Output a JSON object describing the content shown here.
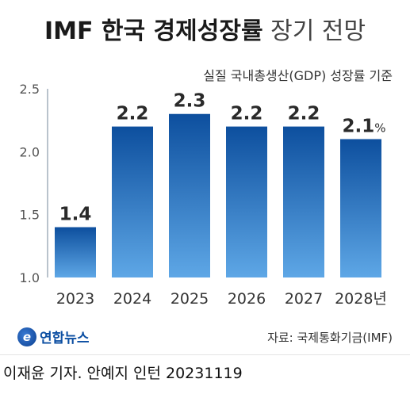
{
  "header": {
    "title_bold": "IMF 한국 경제성장률",
    "title_light": "장기 전망",
    "subtitle": "실질 국내총생산(GDP) 성장률 기준"
  },
  "chart_data": {
    "type": "bar",
    "categories": [
      "2023",
      "2024",
      "2025",
      "2026",
      "2027",
      "2028년"
    ],
    "values": [
      1.4,
      2.2,
      2.3,
      2.2,
      2.2,
      2.1
    ],
    "value_labels": [
      "1.4",
      "2.2",
      "2.3",
      "2.2",
      "2.2",
      "2.1"
    ],
    "last_value_unit": "%",
    "yticks": [
      "2.5",
      "2.0",
      "1.5",
      "1.0"
    ],
    "ylim": [
      1.0,
      2.5
    ],
    "grid": false,
    "colors": {
      "bar_top": "#0d4f9e",
      "bar_bottom": "#5ea7e6"
    }
  },
  "footer": {
    "logo_text": "연합뉴스",
    "logo_mark": "e",
    "source": "자료: 국제통화기금(IMF)",
    "credit": "이재윤 기자. 안예지 인턴  20231119"
  }
}
